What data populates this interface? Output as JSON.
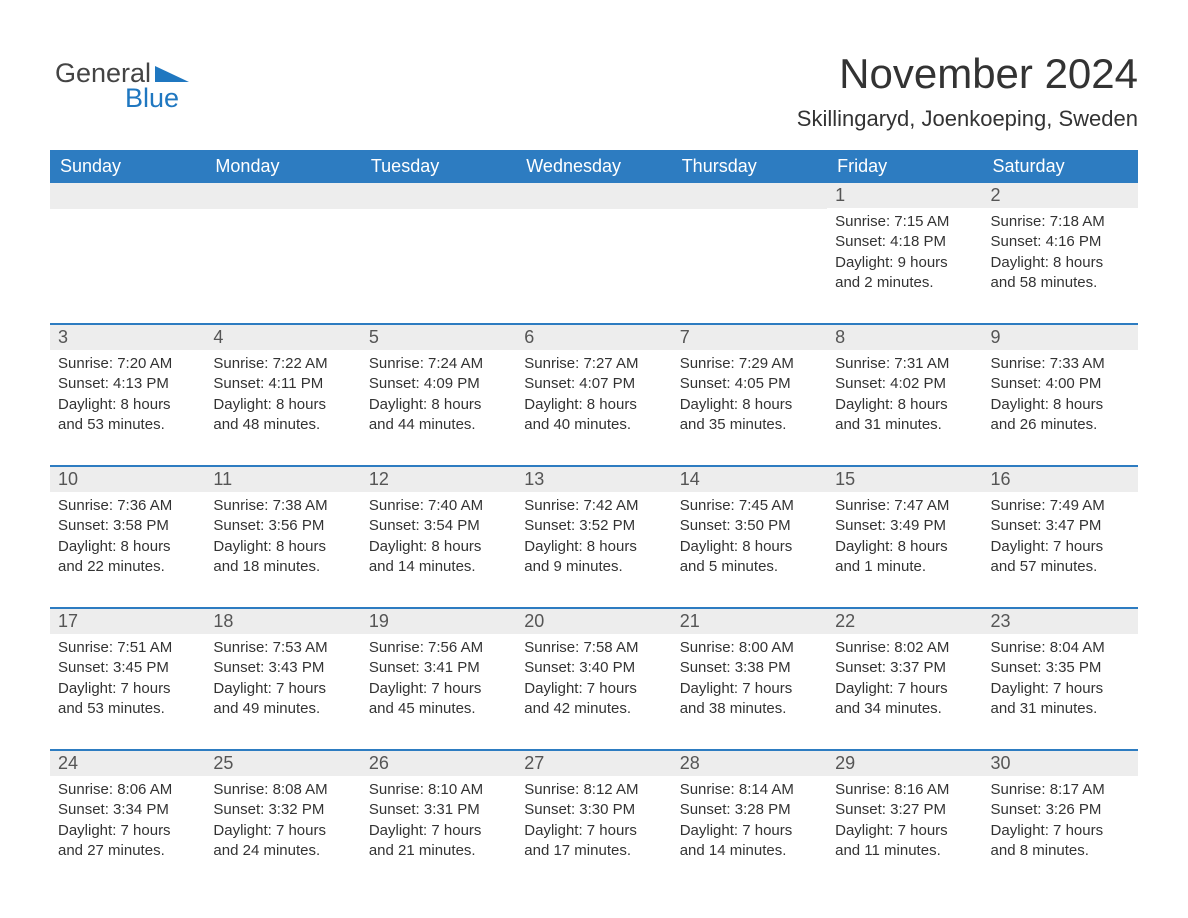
{
  "brand": {
    "general": "General",
    "blue": "Blue"
  },
  "colors": {
    "header_bg": "#2d7cc1",
    "header_text": "#ffffff",
    "day_stripe": "#ededed",
    "rule": "#2d7cc1",
    "text": "#333333",
    "logo_gray": "#444444",
    "logo_blue": "#1f77c0"
  },
  "title": "November 2024",
  "location": "Skillingaryd, Joenkoeping, Sweden",
  "weekdays": [
    "Sunday",
    "Monday",
    "Tuesday",
    "Wednesday",
    "Thursday",
    "Friday",
    "Saturday"
  ],
  "weeks": [
    [
      null,
      null,
      null,
      null,
      null,
      {
        "n": "1",
        "sr": "Sunrise: 7:15 AM",
        "ss": "Sunset: 4:18 PM",
        "dl1": "Daylight: 9 hours",
        "dl2": "and 2 minutes."
      },
      {
        "n": "2",
        "sr": "Sunrise: 7:18 AM",
        "ss": "Sunset: 4:16 PM",
        "dl1": "Daylight: 8 hours",
        "dl2": "and 58 minutes."
      }
    ],
    [
      {
        "n": "3",
        "sr": "Sunrise: 7:20 AM",
        "ss": "Sunset: 4:13 PM",
        "dl1": "Daylight: 8 hours",
        "dl2": "and 53 minutes."
      },
      {
        "n": "4",
        "sr": "Sunrise: 7:22 AM",
        "ss": "Sunset: 4:11 PM",
        "dl1": "Daylight: 8 hours",
        "dl2": "and 48 minutes."
      },
      {
        "n": "5",
        "sr": "Sunrise: 7:24 AM",
        "ss": "Sunset: 4:09 PM",
        "dl1": "Daylight: 8 hours",
        "dl2": "and 44 minutes."
      },
      {
        "n": "6",
        "sr": "Sunrise: 7:27 AM",
        "ss": "Sunset: 4:07 PM",
        "dl1": "Daylight: 8 hours",
        "dl2": "and 40 minutes."
      },
      {
        "n": "7",
        "sr": "Sunrise: 7:29 AM",
        "ss": "Sunset: 4:05 PM",
        "dl1": "Daylight: 8 hours",
        "dl2": "and 35 minutes."
      },
      {
        "n": "8",
        "sr": "Sunrise: 7:31 AM",
        "ss": "Sunset: 4:02 PM",
        "dl1": "Daylight: 8 hours",
        "dl2": "and 31 minutes."
      },
      {
        "n": "9",
        "sr": "Sunrise: 7:33 AM",
        "ss": "Sunset: 4:00 PM",
        "dl1": "Daylight: 8 hours",
        "dl2": "and 26 minutes."
      }
    ],
    [
      {
        "n": "10",
        "sr": "Sunrise: 7:36 AM",
        "ss": "Sunset: 3:58 PM",
        "dl1": "Daylight: 8 hours",
        "dl2": "and 22 minutes."
      },
      {
        "n": "11",
        "sr": "Sunrise: 7:38 AM",
        "ss": "Sunset: 3:56 PM",
        "dl1": "Daylight: 8 hours",
        "dl2": "and 18 minutes."
      },
      {
        "n": "12",
        "sr": "Sunrise: 7:40 AM",
        "ss": "Sunset: 3:54 PM",
        "dl1": "Daylight: 8 hours",
        "dl2": "and 14 minutes."
      },
      {
        "n": "13",
        "sr": "Sunrise: 7:42 AM",
        "ss": "Sunset: 3:52 PM",
        "dl1": "Daylight: 8 hours",
        "dl2": "and 9 minutes."
      },
      {
        "n": "14",
        "sr": "Sunrise: 7:45 AM",
        "ss": "Sunset: 3:50 PM",
        "dl1": "Daylight: 8 hours",
        "dl2": "and 5 minutes."
      },
      {
        "n": "15",
        "sr": "Sunrise: 7:47 AM",
        "ss": "Sunset: 3:49 PM",
        "dl1": "Daylight: 8 hours",
        "dl2": "and 1 minute."
      },
      {
        "n": "16",
        "sr": "Sunrise: 7:49 AM",
        "ss": "Sunset: 3:47 PM",
        "dl1": "Daylight: 7 hours",
        "dl2": "and 57 minutes."
      }
    ],
    [
      {
        "n": "17",
        "sr": "Sunrise: 7:51 AM",
        "ss": "Sunset: 3:45 PM",
        "dl1": "Daylight: 7 hours",
        "dl2": "and 53 minutes."
      },
      {
        "n": "18",
        "sr": "Sunrise: 7:53 AM",
        "ss": "Sunset: 3:43 PM",
        "dl1": "Daylight: 7 hours",
        "dl2": "and 49 minutes."
      },
      {
        "n": "19",
        "sr": "Sunrise: 7:56 AM",
        "ss": "Sunset: 3:41 PM",
        "dl1": "Daylight: 7 hours",
        "dl2": "and 45 minutes."
      },
      {
        "n": "20",
        "sr": "Sunrise: 7:58 AM",
        "ss": "Sunset: 3:40 PM",
        "dl1": "Daylight: 7 hours",
        "dl2": "and 42 minutes."
      },
      {
        "n": "21",
        "sr": "Sunrise: 8:00 AM",
        "ss": "Sunset: 3:38 PM",
        "dl1": "Daylight: 7 hours",
        "dl2": "and 38 minutes."
      },
      {
        "n": "22",
        "sr": "Sunrise: 8:02 AM",
        "ss": "Sunset: 3:37 PM",
        "dl1": "Daylight: 7 hours",
        "dl2": "and 34 minutes."
      },
      {
        "n": "23",
        "sr": "Sunrise: 8:04 AM",
        "ss": "Sunset: 3:35 PM",
        "dl1": "Daylight: 7 hours",
        "dl2": "and 31 minutes."
      }
    ],
    [
      {
        "n": "24",
        "sr": "Sunrise: 8:06 AM",
        "ss": "Sunset: 3:34 PM",
        "dl1": "Daylight: 7 hours",
        "dl2": "and 27 minutes."
      },
      {
        "n": "25",
        "sr": "Sunrise: 8:08 AM",
        "ss": "Sunset: 3:32 PM",
        "dl1": "Daylight: 7 hours",
        "dl2": "and 24 minutes."
      },
      {
        "n": "26",
        "sr": "Sunrise: 8:10 AM",
        "ss": "Sunset: 3:31 PM",
        "dl1": "Daylight: 7 hours",
        "dl2": "and 21 minutes."
      },
      {
        "n": "27",
        "sr": "Sunrise: 8:12 AM",
        "ss": "Sunset: 3:30 PM",
        "dl1": "Daylight: 7 hours",
        "dl2": "and 17 minutes."
      },
      {
        "n": "28",
        "sr": "Sunrise: 8:14 AM",
        "ss": "Sunset: 3:28 PM",
        "dl1": "Daylight: 7 hours",
        "dl2": "and 14 minutes."
      },
      {
        "n": "29",
        "sr": "Sunrise: 8:16 AM",
        "ss": "Sunset: 3:27 PM",
        "dl1": "Daylight: 7 hours",
        "dl2": "and 11 minutes."
      },
      {
        "n": "30",
        "sr": "Sunrise: 8:17 AM",
        "ss": "Sunset: 3:26 PM",
        "dl1": "Daylight: 7 hours",
        "dl2": "and 8 minutes."
      }
    ]
  ]
}
